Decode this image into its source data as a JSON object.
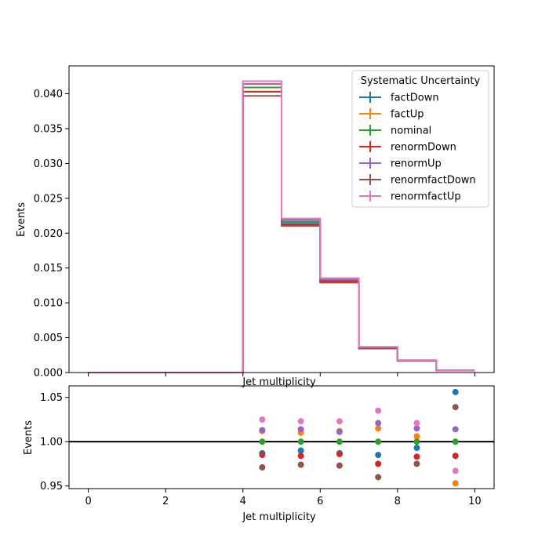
{
  "chart_data": [
    {
      "type": "histogram",
      "xlabel": "Jet multiplicity",
      "ylabel": "Events",
      "xlim": [
        -0.5,
        10.5
      ],
      "ylim": [
        0,
        0.044
      ],
      "yticks": [
        0.0,
        0.005,
        0.01,
        0.015,
        0.02,
        0.025,
        0.03,
        0.035,
        0.04
      ],
      "ytick_labels": [
        "0.000",
        "0.005",
        "0.010",
        "0.015",
        "0.020",
        "0.025",
        "0.030",
        "0.035",
        "0.040"
      ],
      "bin_edges": [
        0,
        1,
        2,
        3,
        4,
        5,
        6,
        7,
        8,
        9,
        10
      ],
      "legend_title": "Systematic Uncertainty",
      "legend_position": "top-right",
      "series": [
        {
          "name": "factDown",
          "color": "#1f77b4",
          "values": [
            0,
            0,
            0,
            0,
            0.0403,
            0.02135,
            0.0131,
            0.00352,
            0.00172,
            0.00034
          ]
        },
        {
          "name": "factUp",
          "color": "#ff7f0e",
          "values": [
            0,
            0,
            0,
            0,
            0.0414,
            0.02185,
            0.0134,
            0.00363,
            0.00175,
            0.00031
          ]
        },
        {
          "name": "nominal",
          "color": "#2ca02c",
          "values": [
            0,
            0,
            0,
            0,
            0.0409,
            0.0216,
            0.01325,
            0.00357,
            0.00173,
            0.00032
          ]
        },
        {
          "name": "renormDown",
          "color": "#d62728",
          "values": [
            0,
            0,
            0,
            0,
            0.0403,
            0.02125,
            0.01305,
            0.00348,
            0.0017,
            0.00031
          ]
        },
        {
          "name": "renormUp",
          "color": "#9467bd",
          "values": [
            0,
            0,
            0,
            0,
            0.0414,
            0.0219,
            0.0134,
            0.00365,
            0.00176,
            0.00033
          ]
        },
        {
          "name": "renormfactDown",
          "color": "#8c564b",
          "values": [
            0,
            0,
            0,
            0,
            0.0397,
            0.02105,
            0.0129,
            0.00343,
            0.00169,
            0.00033
          ]
        },
        {
          "name": "renormfactUp",
          "color": "#e377c2",
          "values": [
            0,
            0,
            0,
            0,
            0.0418,
            0.0221,
            0.01355,
            0.0037,
            0.00177,
            0.00031
          ]
        }
      ]
    },
    {
      "type": "scatter",
      "xlabel": "Jet multiplicity",
      "ylabel": "Events",
      "xlim": [
        -0.5,
        10.5
      ],
      "ylim": [
        0.947,
        1.063
      ],
      "xticks": [
        0,
        2,
        4,
        6,
        8,
        10
      ],
      "xtick_labels": [
        "0",
        "2",
        "4",
        "6",
        "8",
        "10"
      ],
      "yticks": [
        0.95,
        1.0,
        1.05
      ],
      "ytick_labels": [
        "0.95",
        "1.00",
        "1.05"
      ],
      "reference_line": 1.0,
      "x": [
        4.5,
        5.5,
        6.5,
        7.5,
        8.5,
        9.5
      ],
      "series": [
        {
          "name": "factDown",
          "color": "#1f77b4",
          "values": [
            0.987,
            0.99,
            0.987,
            0.985,
            0.993,
            1.056
          ]
        },
        {
          "name": "factUp",
          "color": "#ff7f0e",
          "values": [
            1.012,
            1.01,
            1.012,
            1.015,
            1.006,
            0.953
          ]
        },
        {
          "name": "nominal",
          "color": "#2ca02c",
          "values": [
            1.0,
            1.0,
            1.0,
            1.0,
            1.0,
            1.0
          ]
        },
        {
          "name": "renormDown",
          "color": "#d62728",
          "values": [
            0.985,
            0.984,
            0.986,
            0.975,
            0.983,
            0.984
          ]
        },
        {
          "name": "renormUp",
          "color": "#9467bd",
          "values": [
            1.013,
            1.014,
            1.011,
            1.021,
            1.015,
            1.014
          ]
        },
        {
          "name": "renormfactDown",
          "color": "#8c564b",
          "values": [
            0.971,
            0.974,
            0.973,
            0.96,
            0.975,
            1.039
          ]
        },
        {
          "name": "renormfactUp",
          "color": "#e377c2",
          "values": [
            1.025,
            1.023,
            1.023,
            1.035,
            1.021,
            0.967
          ]
        }
      ]
    }
  ]
}
